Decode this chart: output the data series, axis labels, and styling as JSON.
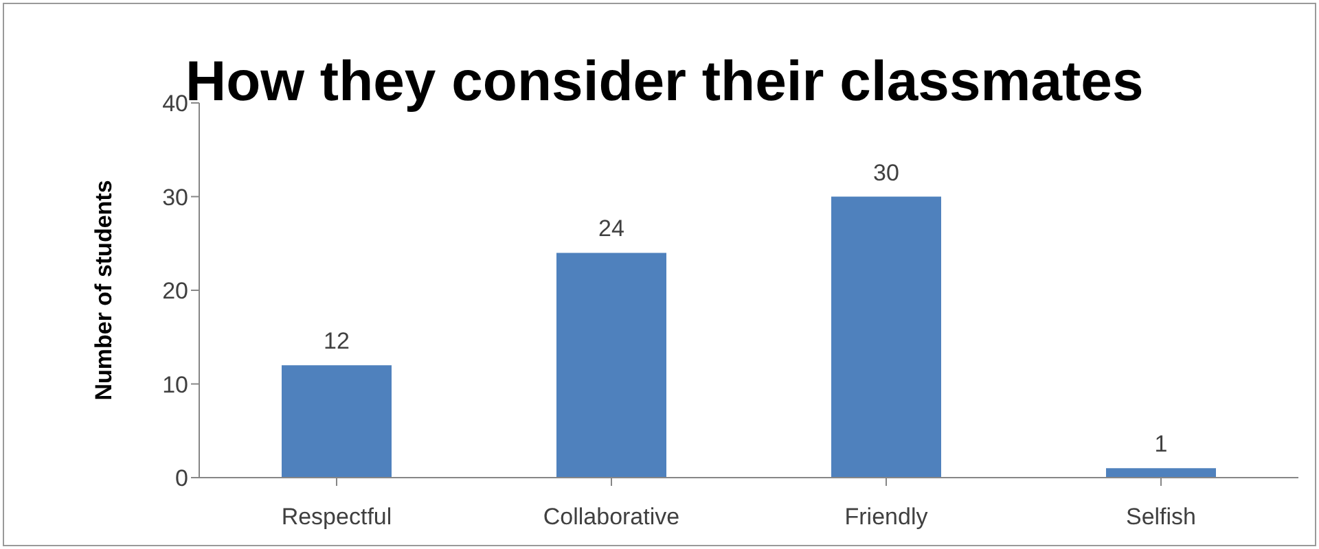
{
  "chart_data": {
    "type": "bar",
    "title": "How they consider their classmates",
    "ylabel": "Number of students",
    "categories": [
      "Respectful",
      "Collaborative",
      "Friendly",
      "Selfish"
    ],
    "values": [
      12,
      24,
      30,
      1
    ],
    "color": "#4f81bd",
    "ylim": [
      0,
      40
    ],
    "yticks": [
      0,
      10,
      20,
      30,
      40
    ],
    "grid": false,
    "data_labels": true
  }
}
